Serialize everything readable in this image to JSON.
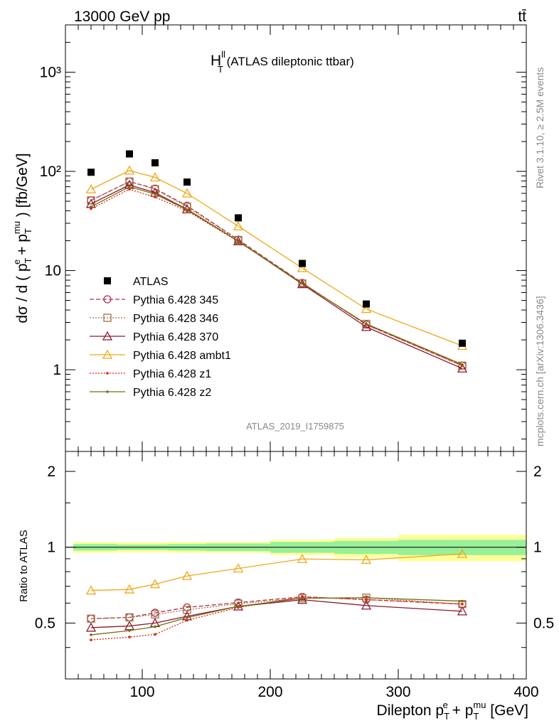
{
  "header": {
    "left": "13000 GeV pp",
    "right": "tt̄"
  },
  "title": {
    "main": "H",
    "sup": "ll",
    "sub": "T",
    "suffix": " (ATLAS dileptonic ttbar)"
  },
  "side_text": {
    "rivet": "Rivet 3.1.10, ≥ 2.5M events",
    "mcplots": "mcplots.cern.ch [arXiv:1306.3436]"
  },
  "analysis_id": "ATLAS_2019_I1759875",
  "main_axis": {
    "ylabel": "dσ / d ( p_T^e + p_T^mu ) [fb/GeV]",
    "ytick_labels": [
      "1",
      "10",
      "10²",
      "10³"
    ]
  },
  "ratio_axis": {
    "ylabel": "Ratio to ATLAS",
    "ytick_labels": [
      "0.5",
      "1",
      "2"
    ],
    "xtick_labels": [
      "100",
      "200",
      "300",
      "400"
    ],
    "xlabel": "Dilepton p_T^e + p_T^mu [GeV]"
  },
  "colors": {
    "ATLAS": "#000000",
    "p345": "#b03050",
    "p346": "#a07040",
    "p370": "#8b1a2e",
    "ambt1": "#f0a818",
    "z1": "#e02010",
    "z2": "#707010",
    "band_yellow": "#ffff99",
    "band_green": "#99f099"
  },
  "chart_data": {
    "type": "line",
    "xlim": [
      40,
      400
    ],
    "ylim_main": [
      0.15,
      3000
    ],
    "ylim_ratio": [
      0.3,
      2.4
    ],
    "log_y_main": true,
    "log_y_ratio": true,
    "bins": [
      [
        40,
        80
      ],
      [
        80,
        100
      ],
      [
        100,
        120
      ],
      [
        120,
        150
      ],
      [
        150,
        200
      ],
      [
        200,
        250
      ],
      [
        250,
        300
      ],
      [
        300,
        400
      ]
    ],
    "x": [
      60,
      90,
      110,
      135,
      175,
      225,
      275,
      350
    ],
    "data": {
      "name": "ATLAS",
      "values": [
        98,
        150,
        122,
        78,
        34,
        11.8,
        4.6,
        1.85
      ],
      "rel_err_inner": [
        0.03,
        0.025,
        0.025,
        0.03,
        0.035,
        0.05,
        0.06,
        0.07
      ],
      "rel_err_outer": [
        0.05,
        0.045,
        0.045,
        0.05,
        0.05,
        0.07,
        0.09,
        0.12
      ]
    },
    "series": [
      {
        "name": "Pythia 6.428 345",
        "key": "p345",
        "marker": "circle",
        "dash": "6,3",
        "values": [
          51,
          79,
          67,
          45,
          20.5,
          7.5,
          2.85,
          1.1
        ]
      },
      {
        "name": "Pythia 6.428 346",
        "key": "p346",
        "marker": "square",
        "dash": "2,2",
        "values": [
          51,
          79,
          66,
          44,
          20.3,
          7.4,
          2.9,
          1.1
        ]
      },
      {
        "name": "Pythia 6.428 370",
        "key": "p370",
        "marker": "triangle-open",
        "dash": "",
        "values": [
          47,
          73,
          61,
          41.5,
          19.8,
          7.3,
          2.7,
          1.03
        ]
      },
      {
        "name": "Pythia 6.428 ambt1",
        "key": "ambt1",
        "marker": "triangle-open",
        "dash": "",
        "values": [
          66,
          102,
          87,
          60,
          28,
          10.6,
          4.1,
          1.74
        ]
      },
      {
        "name": "Pythia 6.428 z1",
        "key": "z1",
        "marker": "dot",
        "dash": "2,2",
        "values": [
          42,
          66,
          55,
          40,
          19.6,
          7.5,
          2.85,
          1.1
        ]
      },
      {
        "name": "Pythia 6.428 z2",
        "key": "z2",
        "marker": "dot",
        "dash": "",
        "values": [
          44,
          70,
          59,
          41,
          19.8,
          7.4,
          2.9,
          1.13
        ]
      }
    ]
  }
}
